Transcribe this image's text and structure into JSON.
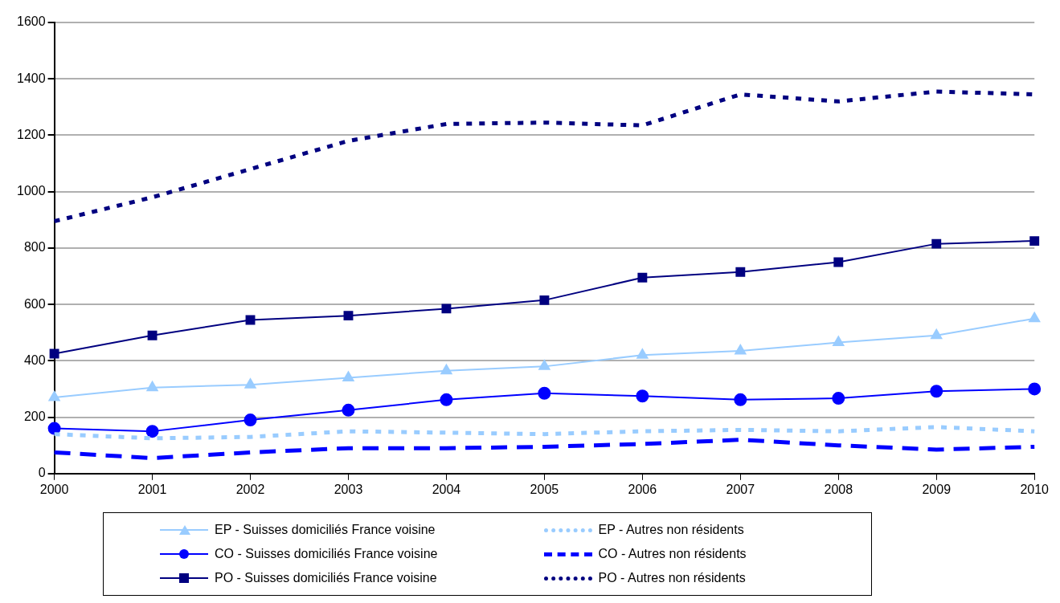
{
  "chart_data": {
    "type": "line",
    "categories": [
      "2000",
      "2001",
      "2002",
      "2003",
      "2004",
      "2005",
      "2006",
      "2007",
      "2008",
      "2009",
      "2010"
    ],
    "series": [
      {
        "name": "EP - Suisses domiciliés France voisine",
        "color": "#99ccff",
        "marker": "triangle",
        "line_style": "solid",
        "values": [
          270,
          305,
          315,
          340,
          365,
          380,
          420,
          435,
          465,
          490,
          550
        ]
      },
      {
        "name": "EP - Autres non résidents",
        "color": "#99ccff",
        "marker": "none",
        "line_style": "dotted",
        "values": [
          140,
          125,
          130,
          150,
          145,
          140,
          150,
          155,
          150,
          165,
          150
        ]
      },
      {
        "name": "CO - Suisses domiciliés France voisine",
        "color": "#0000ff",
        "marker": "circle",
        "line_style": "solid",
        "values": [
          160,
          150,
          190,
          225,
          262,
          285,
          275,
          262,
          267,
          292,
          300
        ]
      },
      {
        "name": "CO - Autres non résidents",
        "color": "#0000ff",
        "marker": "none",
        "line_style": "dashed",
        "values": [
          75,
          55,
          75,
          90,
          90,
          95,
          105,
          120,
          100,
          85,
          95
        ]
      },
      {
        "name": "PO - Suisses domiciliés France voisine",
        "color": "#000080",
        "marker": "square",
        "line_style": "solid",
        "values": [
          425,
          490,
          545,
          560,
          585,
          615,
          695,
          715,
          750,
          815,
          825
        ]
      },
      {
        "name": "PO - Autres non résidents",
        "color": "#000080",
        "marker": "none",
        "line_style": "dotted",
        "values": [
          895,
          980,
          1080,
          1180,
          1240,
          1245,
          1235,
          1345,
          1320,
          1355,
          1345
        ]
      }
    ],
    "ylim": [
      0,
      1600
    ],
    "yticks": [
      0,
      200,
      400,
      600,
      800,
      1000,
      1200,
      1400,
      1600
    ],
    "grid": "y",
    "legend": "bottom"
  }
}
